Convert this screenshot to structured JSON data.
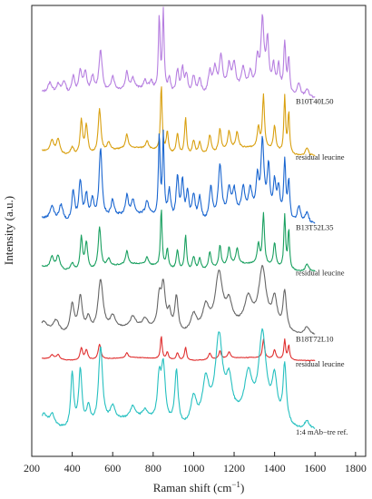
{
  "chart_data": {
    "type": "line",
    "xlabel": "Raman shift (cm",
    "xlabel_sup": "−1",
    "xlabel_close": ")",
    "ylabel": "Intensity (a.u.)",
    "xlim": [
      200,
      1850
    ],
    "xticks": [
      "200",
      "400",
      "600",
      "800",
      "1000",
      "1200",
      "1400",
      "1600",
      "1800"
    ],
    "xtick_values": [
      200,
      400,
      600,
      800,
      1000,
      1200,
      1400,
      1600,
      1800
    ],
    "series": [
      {
        "name": "B10T40L50",
        "color": "#b67ee0",
        "offset": 8.1,
        "scale": 1.05,
        "noise": 0.05,
        "base": 0.05,
        "peaks": [
          [
            290,
            0.25,
            12
          ],
          [
            330,
            0.22,
            12
          ],
          [
            360,
            0.32,
            12
          ],
          [
            405,
            0.45,
            10
          ],
          [
            440,
            0.55,
            10
          ],
          [
            465,
            0.5,
            10
          ],
          [
            500,
            0.4,
            10
          ],
          [
            540,
            1.0,
            10
          ],
          [
            600,
            0.35,
            10
          ],
          [
            670,
            0.4,
            8
          ],
          [
            700,
            0.25,
            10
          ],
          [
            760,
            0.2,
            10
          ],
          [
            790,
            0.2,
            10
          ],
          [
            830,
            1.7,
            5
          ],
          [
            850,
            1.85,
            5
          ],
          [
            880,
            0.35,
            8
          ],
          [
            920,
            0.55,
            8
          ],
          [
            945,
            0.6,
            8
          ],
          [
            965,
            0.45,
            8
          ],
          [
            1000,
            0.45,
            10
          ],
          [
            1030,
            0.35,
            10
          ],
          [
            1080,
            0.5,
            10
          ],
          [
            1105,
            0.55,
            10
          ],
          [
            1135,
            0.8,
            10
          ],
          [
            1175,
            0.55,
            10
          ],
          [
            1200,
            0.55,
            10
          ],
          [
            1245,
            0.45,
            10
          ],
          [
            1280,
            0.35,
            10
          ],
          [
            1315,
            0.65,
            8
          ],
          [
            1340,
            1.55,
            9
          ],
          [
            1365,
            1.1,
            8
          ],
          [
            1395,
            0.55,
            8
          ],
          [
            1420,
            0.6,
            8
          ],
          [
            1450,
            1.15,
            6
          ],
          [
            1470,
            0.8,
            6
          ],
          [
            1520,
            0.3,
            10
          ],
          [
            1560,
            0.2,
            10
          ]
        ]
      },
      {
        "name": "residual leucine",
        "color": "#d9a010",
        "offset": 6.75,
        "scale": 1.0,
        "noise": 0.03,
        "base": 0.0,
        "peaks": [
          [
            300,
            0.3,
            10
          ],
          [
            330,
            0.35,
            10
          ],
          [
            400,
            0.2,
            10
          ],
          [
            445,
            0.85,
            7
          ],
          [
            470,
            0.7,
            8
          ],
          [
            535,
            1.05,
            8
          ],
          [
            580,
            0.2,
            10
          ],
          [
            670,
            0.35,
            7
          ],
          [
            770,
            0.2,
            8
          ],
          [
            840,
            1.6,
            5
          ],
          [
            870,
            0.5,
            6
          ],
          [
            920,
            0.5,
            7
          ],
          [
            960,
            0.9,
            6
          ],
          [
            1000,
            0.35,
            8
          ],
          [
            1030,
            0.3,
            8
          ],
          [
            1080,
            0.45,
            8
          ],
          [
            1130,
            0.55,
            7
          ],
          [
            1175,
            0.45,
            8
          ],
          [
            1215,
            0.4,
            8
          ],
          [
            1320,
            0.5,
            7
          ],
          [
            1345,
            1.3,
            6
          ],
          [
            1400,
            0.6,
            7
          ],
          [
            1450,
            1.35,
            5
          ],
          [
            1470,
            1.0,
            5
          ],
          [
            1560,
            0.2,
            10
          ]
        ]
      },
      {
        "name": "B13T52L35",
        "color": "#1a66d0",
        "offset": 5.05,
        "scale": 1.15,
        "noise": 0.05,
        "base": 0.05,
        "peaks": [
          [
            300,
            0.3,
            12
          ],
          [
            345,
            0.35,
            12
          ],
          [
            405,
            0.65,
            9
          ],
          [
            440,
            0.85,
            9
          ],
          [
            470,
            0.55,
            9
          ],
          [
            500,
            0.45,
            9
          ],
          [
            540,
            1.5,
            9
          ],
          [
            600,
            0.35,
            10
          ],
          [
            670,
            0.4,
            8
          ],
          [
            700,
            0.3,
            10
          ],
          [
            770,
            0.3,
            10
          ],
          [
            830,
            1.7,
            5
          ],
          [
            850,
            1.7,
            5
          ],
          [
            880,
            0.6,
            8
          ],
          [
            920,
            0.9,
            8
          ],
          [
            945,
            0.8,
            8
          ],
          [
            970,
            0.6,
            8
          ],
          [
            1000,
            0.55,
            9
          ],
          [
            1030,
            0.5,
            9
          ],
          [
            1085,
            0.7,
            9
          ],
          [
            1130,
            1.1,
            10
          ],
          [
            1175,
            0.55,
            10
          ],
          [
            1200,
            0.5,
            10
          ],
          [
            1245,
            0.55,
            10
          ],
          [
            1280,
            0.5,
            10
          ],
          [
            1315,
            0.7,
            8
          ],
          [
            1340,
            1.5,
            9
          ],
          [
            1370,
            1.0,
            8
          ],
          [
            1400,
            0.7,
            8
          ],
          [
            1420,
            0.6,
            8
          ],
          [
            1450,
            1.2,
            6
          ],
          [
            1470,
            0.8,
            6
          ],
          [
            1520,
            0.35,
            10
          ],
          [
            1560,
            0.25,
            10
          ]
        ]
      },
      {
        "name": "residual leucine",
        "color": "#1aa060",
        "offset": 3.95,
        "scale": 0.95,
        "noise": 0.03,
        "base": 0.0,
        "peaks": [
          [
            300,
            0.3,
            10
          ],
          [
            330,
            0.35,
            10
          ],
          [
            400,
            0.2,
            10
          ],
          [
            445,
            0.85,
            7
          ],
          [
            470,
            0.7,
            8
          ],
          [
            535,
            1.05,
            8
          ],
          [
            580,
            0.2,
            10
          ],
          [
            670,
            0.35,
            7
          ],
          [
            770,
            0.2,
            8
          ],
          [
            840,
            1.5,
            5
          ],
          [
            870,
            0.5,
            6
          ],
          [
            920,
            0.5,
            7
          ],
          [
            960,
            0.9,
            6
          ],
          [
            1000,
            0.35,
            8
          ],
          [
            1030,
            0.3,
            8
          ],
          [
            1080,
            0.45,
            8
          ],
          [
            1130,
            0.55,
            7
          ],
          [
            1175,
            0.45,
            8
          ],
          [
            1215,
            0.4,
            8
          ],
          [
            1320,
            0.5,
            7
          ],
          [
            1345,
            1.3,
            6
          ],
          [
            1400,
            0.6,
            7
          ],
          [
            1450,
            1.35,
            5
          ],
          [
            1470,
            1.0,
            5
          ],
          [
            1560,
            0.2,
            10
          ]
        ]
      },
      {
        "name": "B18T72L10",
        "color": "#666666",
        "offset": 2.35,
        "scale": 1.0,
        "noise": 0.03,
        "base": 0.05,
        "peaks": [
          [
            260,
            0.2,
            20
          ],
          [
            320,
            0.3,
            18
          ],
          [
            400,
            0.7,
            12
          ],
          [
            440,
            0.9,
            12
          ],
          [
            480,
            0.35,
            12
          ],
          [
            540,
            1.25,
            15
          ],
          [
            600,
            0.3,
            15
          ],
          [
            700,
            0.25,
            15
          ],
          [
            760,
            0.2,
            15
          ],
          [
            830,
            0.7,
            10
          ],
          [
            850,
            1.05,
            12
          ],
          [
            880,
            0.4,
            10
          ],
          [
            915,
            0.85,
            10
          ],
          [
            1000,
            0.45,
            18
          ],
          [
            1060,
            0.6,
            20
          ],
          [
            1125,
            1.35,
            22
          ],
          [
            1175,
            0.55,
            18
          ],
          [
            1270,
            0.65,
            22
          ],
          [
            1340,
            1.4,
            22
          ],
          [
            1400,
            0.7,
            15
          ],
          [
            1450,
            0.95,
            10
          ],
          [
            1560,
            0.2,
            15
          ]
        ]
      },
      {
        "name": "residual leucine",
        "color": "#e03030",
        "offset": 1.75,
        "scale": 0.35,
        "noise": 0.04,
        "base": 0.0,
        "peaks": [
          [
            300,
            0.3,
            10
          ],
          [
            330,
            0.35,
            10
          ],
          [
            445,
            0.85,
            7
          ],
          [
            470,
            0.7,
            8
          ],
          [
            535,
            1.05,
            8
          ],
          [
            670,
            0.35,
            7
          ],
          [
            840,
            1.6,
            5
          ],
          [
            870,
            0.5,
            6
          ],
          [
            920,
            0.5,
            7
          ],
          [
            960,
            0.9,
            6
          ],
          [
            1080,
            0.45,
            8
          ],
          [
            1130,
            0.55,
            7
          ],
          [
            1175,
            0.45,
            8
          ],
          [
            1345,
            1.3,
            6
          ],
          [
            1400,
            0.6,
            7
          ],
          [
            1450,
            1.35,
            5
          ],
          [
            1470,
            1.0,
            5
          ]
        ]
      },
      {
        "name": "1:4 mAb−tre ref.",
        "color": "#26c0c0",
        "offset": 0.1,
        "scale": 1.4,
        "noise": 0.03,
        "base": 0.03,
        "peaks": [
          [
            260,
            0.15,
            15
          ],
          [
            300,
            0.2,
            15
          ],
          [
            400,
            0.95,
            9
          ],
          [
            440,
            1.0,
            10
          ],
          [
            480,
            0.35,
            12
          ],
          [
            540,
            1.35,
            12
          ],
          [
            600,
            0.25,
            15
          ],
          [
            700,
            0.2,
            15
          ],
          [
            760,
            0.15,
            15
          ],
          [
            830,
            0.7,
            10
          ],
          [
            850,
            0.95,
            12
          ],
          [
            915,
            0.95,
            10
          ],
          [
            1000,
            0.5,
            18
          ],
          [
            1060,
            0.75,
            20
          ],
          [
            1125,
            1.45,
            22
          ],
          [
            1175,
            0.6,
            18
          ],
          [
            1270,
            0.7,
            22
          ],
          [
            1340,
            1.45,
            22
          ],
          [
            1400,
            0.7,
            15
          ],
          [
            1450,
            1.0,
            10
          ],
          [
            1560,
            0.15,
            15
          ]
        ]
      }
    ]
  }
}
